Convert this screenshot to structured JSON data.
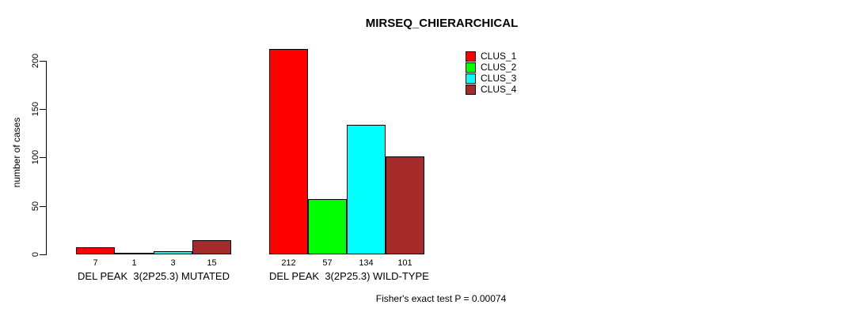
{
  "chart_data": {
    "type": "bar",
    "title": "MIRSEQ_CHIERARCHICAL",
    "ylabel": "number of cases",
    "xlabel": "",
    "annotation": "Fisher's exact test P = 0.00074",
    "categories": [
      "DEL PEAK  3(2P25.3) MUTATED",
      "DEL PEAK  3(2P25.3) WILD-TYPE"
    ],
    "series": [
      {
        "name": "CLUS_1",
        "color": "#ff0000",
        "values": [
          7,
          212
        ]
      },
      {
        "name": "CLUS_2",
        "color": "#00ff00",
        "values": [
          1,
          57
        ]
      },
      {
        "name": "CLUS_3",
        "color": "#00ffff",
        "values": [
          3,
          134
        ]
      },
      {
        "name": "CLUS_4",
        "color": "#a52a2a",
        "values": [
          15,
          101
        ]
      }
    ],
    "bar_value_labels": [
      [
        "7",
        "1",
        "3",
        "15"
      ],
      [
        "212",
        "57",
        "134",
        "101"
      ]
    ],
    "yticks": [
      0,
      50,
      100,
      150,
      200
    ],
    "ylim": [
      0,
      212
    ],
    "grid": false,
    "legend_position": "top-right",
    "axis_color": "#000000",
    "bar_border_color": "#000000",
    "background_color": "#ffffff"
  }
}
